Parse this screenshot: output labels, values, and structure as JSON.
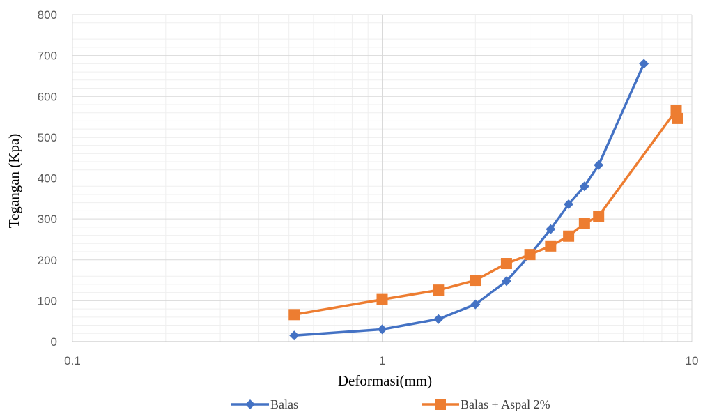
{
  "chart_data": {
    "type": "line",
    "xscale": "log",
    "xlim": [
      0.1,
      10
    ],
    "ylim": [
      0,
      800
    ],
    "xlabel": "Deformasi(mm)",
    "ylabel": "Tegangan (Kpa)",
    "x_ticks": [
      "0.1",
      "1",
      "10"
    ],
    "y_ticks": [
      "0",
      "100",
      "200",
      "300",
      "400",
      "500",
      "600",
      "700",
      "800"
    ],
    "grid": true,
    "legend_position": "bottom",
    "series": [
      {
        "name": "Balas",
        "color": "#4472C4",
        "marker": "diamond",
        "x": [
          0.52,
          1.0,
          1.52,
          2.0,
          2.52,
          3.0,
          3.5,
          4.0,
          4.5,
          5.0,
          7.0
        ],
        "y": [
          15,
          30,
          55,
          91,
          148,
          212,
          275,
          336,
          380,
          432,
          680
        ]
      },
      {
        "name": "Balas + Aspal 2%",
        "color": "#ED7D31",
        "marker": "square",
        "x": [
          0.52,
          1.0,
          1.52,
          2.0,
          2.52,
          3.0,
          3.5,
          4.0,
          4.5,
          5.0,
          8.9,
          9.0
        ],
        "y": [
          66,
          103,
          126,
          150,
          191,
          213,
          234,
          258,
          289,
          307,
          566,
          546
        ]
      }
    ]
  }
}
